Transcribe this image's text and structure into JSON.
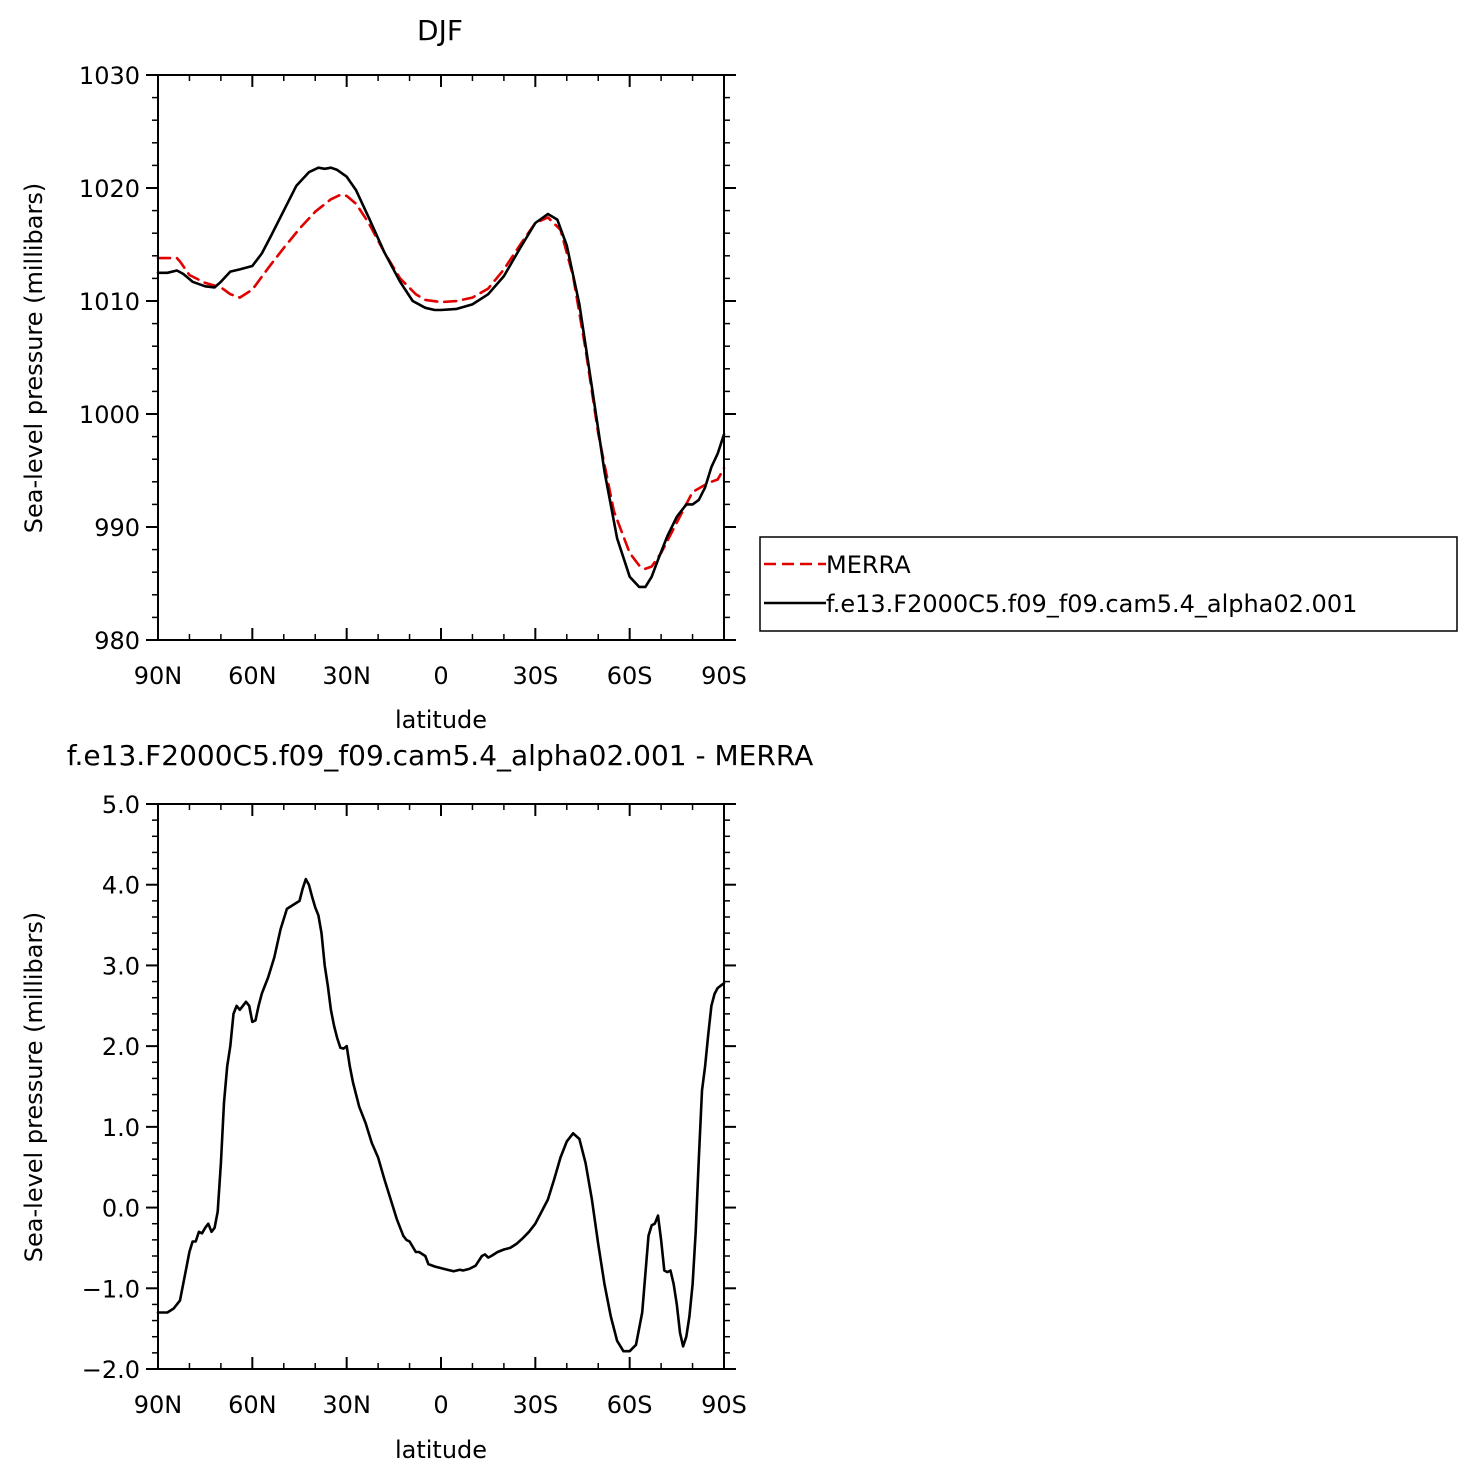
{
  "chart_data": [
    {
      "type": "line",
      "title": "DJF",
      "xlabel": "latitude",
      "ylabel": "Sea-level pressure (millibars)",
      "xlim": [
        -90,
        90
      ],
      "ylim": [
        980,
        1030
      ],
      "x_ticks": [
        -90,
        -60,
        -30,
        0,
        30,
        60,
        90
      ],
      "x_tick_labels": [
        "90N",
        "60N",
        "30N",
        "0",
        "30S",
        "60S",
        "90S"
      ],
      "y_ticks": [
        980,
        990,
        1000,
        1010,
        1020,
        1030
      ],
      "y_tick_labels": [
        "980",
        "990",
        "1000",
        "1010",
        "1020",
        "1030"
      ],
      "grid": false,
      "legend": {
        "placement": "right",
        "entries": [
          "MERRA",
          "f.e13.F2000C5.f09_f09.cam5.4_alpha02.001"
        ]
      },
      "series": [
        {
          "name": "MERRA",
          "color": "#e00000",
          "dash": "dashed",
          "x": [
            -90,
            -84,
            -83,
            -80,
            -75,
            -70,
            -67,
            -64,
            -60,
            -55,
            -50,
            -45,
            -40,
            -35,
            -32,
            -30,
            -27,
            -23,
            -18,
            -13,
            -8,
            -5,
            0,
            5,
            10,
            15,
            20,
            25,
            30,
            34,
            38,
            42,
            46,
            50,
            55,
            60,
            63,
            65,
            67,
            70,
            75,
            80,
            85,
            88,
            90
          ],
          "y": [
            1013.8,
            1013.8,
            1013.5,
            1012.3,
            1011.6,
            1011.2,
            1010.6,
            1010.3,
            1011.0,
            1012.9,
            1014.7,
            1016.4,
            1017.9,
            1019.0,
            1019.4,
            1019.3,
            1018.6,
            1016.9,
            1014.3,
            1012.0,
            1010.6,
            1010.1,
            1009.9,
            1010.0,
            1010.3,
            1011.1,
            1012.8,
            1014.9,
            1016.9,
            1017.4,
            1016.3,
            1012.2,
            1005.7,
            998.3,
            991.4,
            987.7,
            986.6,
            986.3,
            986.5,
            987.7,
            990.4,
            993.1,
            993.9,
            994.2,
            995.2
          ]
        },
        {
          "name": "f.e13.F2000C5.f09_f09.cam5.4_alpha02.001",
          "color": "#000000",
          "dash": "solid",
          "x": [
            -90,
            -87,
            -84,
            -82,
            -79,
            -75,
            -72,
            -70,
            -67,
            -64,
            -60,
            -57,
            -54,
            -50,
            -46,
            -42,
            -39,
            -37,
            -35,
            -33,
            -30,
            -27,
            -23,
            -18,
            -13,
            -9,
            -5,
            -2,
            0,
            5,
            10,
            15,
            20,
            25,
            30,
            34,
            37,
            40,
            44,
            48,
            52,
            56,
            60,
            63,
            65,
            67,
            69,
            72,
            75,
            78,
            80,
            82,
            84,
            86,
            88,
            90
          ],
          "y": [
            1012.5,
            1012.5,
            1012.7,
            1012.4,
            1011.7,
            1011.3,
            1011.2,
            1011.7,
            1012.6,
            1012.8,
            1013.1,
            1014.2,
            1015.8,
            1018.0,
            1020.2,
            1021.4,
            1021.8,
            1021.7,
            1021.8,
            1021.6,
            1021.0,
            1019.8,
            1017.4,
            1014.3,
            1011.7,
            1010.0,
            1009.4,
            1009.2,
            1009.2,
            1009.3,
            1009.7,
            1010.6,
            1012.2,
            1014.6,
            1016.9,
            1017.7,
            1017.2,
            1014.9,
            1009.7,
            1002.4,
            994.9,
            989.0,
            985.6,
            984.7,
            984.7,
            985.6,
            987.1,
            989.2,
            990.9,
            992.0,
            992.0,
            992.4,
            993.5,
            995.3,
            996.5,
            998.2
          ]
        }
      ]
    },
    {
      "type": "line",
      "title": "f.e13.F2000C5.f09_f09.cam5.4_alpha02.001 - MERRA",
      "xlabel": "latitude",
      "ylabel": "Sea-level pressure (millibars)",
      "xlim": [
        -90,
        90
      ],
      "ylim": [
        -2.0,
        5.0
      ],
      "x_ticks": [
        -90,
        -60,
        -30,
        0,
        30,
        60,
        90
      ],
      "x_tick_labels": [
        "90N",
        "60N",
        "30N",
        "0",
        "30S",
        "60S",
        "90S"
      ],
      "y_ticks": [
        -2.0,
        -1.0,
        0.0,
        1.0,
        2.0,
        3.0,
        4.0,
        5.0
      ],
      "y_tick_labels": [
        "−2.0",
        "−1.0",
        "0.0",
        "1.0",
        "2.0",
        "3.0",
        "4.0",
        "5.0"
      ],
      "grid": false,
      "series": [
        {
          "color": "#000000",
          "dash": "solid",
          "x": [
            -90,
            -87,
            -85,
            -83,
            -81,
            -80,
            -79,
            -78,
            -77,
            -76,
            -75,
            -74,
            -73,
            -72,
            -71,
            -70,
            -69,
            -68,
            -67,
            -66,
            -65,
            -64,
            -63,
            -62,
            -61,
            -60,
            -59,
            -58,
            -57,
            -56,
            -55,
            -53,
            -51,
            -49,
            -47,
            -45,
            -44,
            -43,
            -42,
            -41,
            -40,
            -39,
            -38,
            -37,
            -36,
            -35,
            -34,
            -33,
            -32,
            -31,
            -30,
            -29,
            -28,
            -26,
            -24,
            -22,
            -20,
            -18,
            -16,
            -14,
            -12,
            -11,
            -10,
            -8,
            -7,
            -5,
            -4,
            -2,
            0,
            2,
            4,
            6,
            7,
            9,
            11,
            13,
            14,
            15,
            16,
            18,
            20,
            22,
            24,
            26,
            28,
            30,
            32,
            34,
            36,
            38,
            40,
            42,
            44,
            46,
            48,
            50,
            52,
            54,
            56,
            58,
            60,
            62,
            64,
            66,
            67,
            68,
            69,
            70,
            71,
            72,
            73,
            74,
            75,
            76,
            77,
            78,
            79,
            80,
            81,
            82,
            83,
            84,
            85,
            86,
            87,
            88,
            89,
            90
          ],
          "y": [
            -1.3,
            -1.3,
            -1.25,
            -1.15,
            -0.75,
            -0.55,
            -0.42,
            -0.42,
            -0.3,
            -0.32,
            -0.25,
            -0.2,
            -0.3,
            -0.25,
            -0.05,
            0.55,
            1.3,
            1.75,
            2.0,
            2.4,
            2.5,
            2.45,
            2.5,
            2.55,
            2.5,
            2.3,
            2.32,
            2.5,
            2.65,
            2.75,
            2.85,
            3.1,
            3.45,
            3.7,
            3.75,
            3.8,
            3.95,
            4.07,
            4.0,
            3.85,
            3.72,
            3.62,
            3.4,
            3.0,
            2.75,
            2.45,
            2.25,
            2.1,
            1.98,
            1.97,
            2.0,
            1.75,
            1.55,
            1.25,
            1.05,
            0.8,
            0.62,
            0.35,
            0.1,
            -0.15,
            -0.35,
            -0.4,
            -0.42,
            -0.55,
            -0.55,
            -0.6,
            -0.7,
            -0.73,
            -0.75,
            -0.77,
            -0.79,
            -0.77,
            -0.78,
            -0.76,
            -0.72,
            -0.6,
            -0.58,
            -0.62,
            -0.6,
            -0.55,
            -0.52,
            -0.5,
            -0.45,
            -0.38,
            -0.3,
            -0.2,
            -0.05,
            0.1,
            0.35,
            0.62,
            0.82,
            0.92,
            0.85,
            0.55,
            0.1,
            -0.45,
            -0.95,
            -1.35,
            -1.65,
            -1.78,
            -1.78,
            -1.7,
            -1.3,
            -0.35,
            -0.22,
            -0.2,
            -0.1,
            -0.4,
            -0.78,
            -0.8,
            -0.78,
            -0.95,
            -1.2,
            -1.55,
            -1.72,
            -1.6,
            -1.35,
            -0.95,
            -0.3,
            0.6,
            1.45,
            1.75,
            2.15,
            2.5,
            2.65,
            2.72,
            2.75,
            2.78
          ]
        }
      ]
    }
  ]
}
